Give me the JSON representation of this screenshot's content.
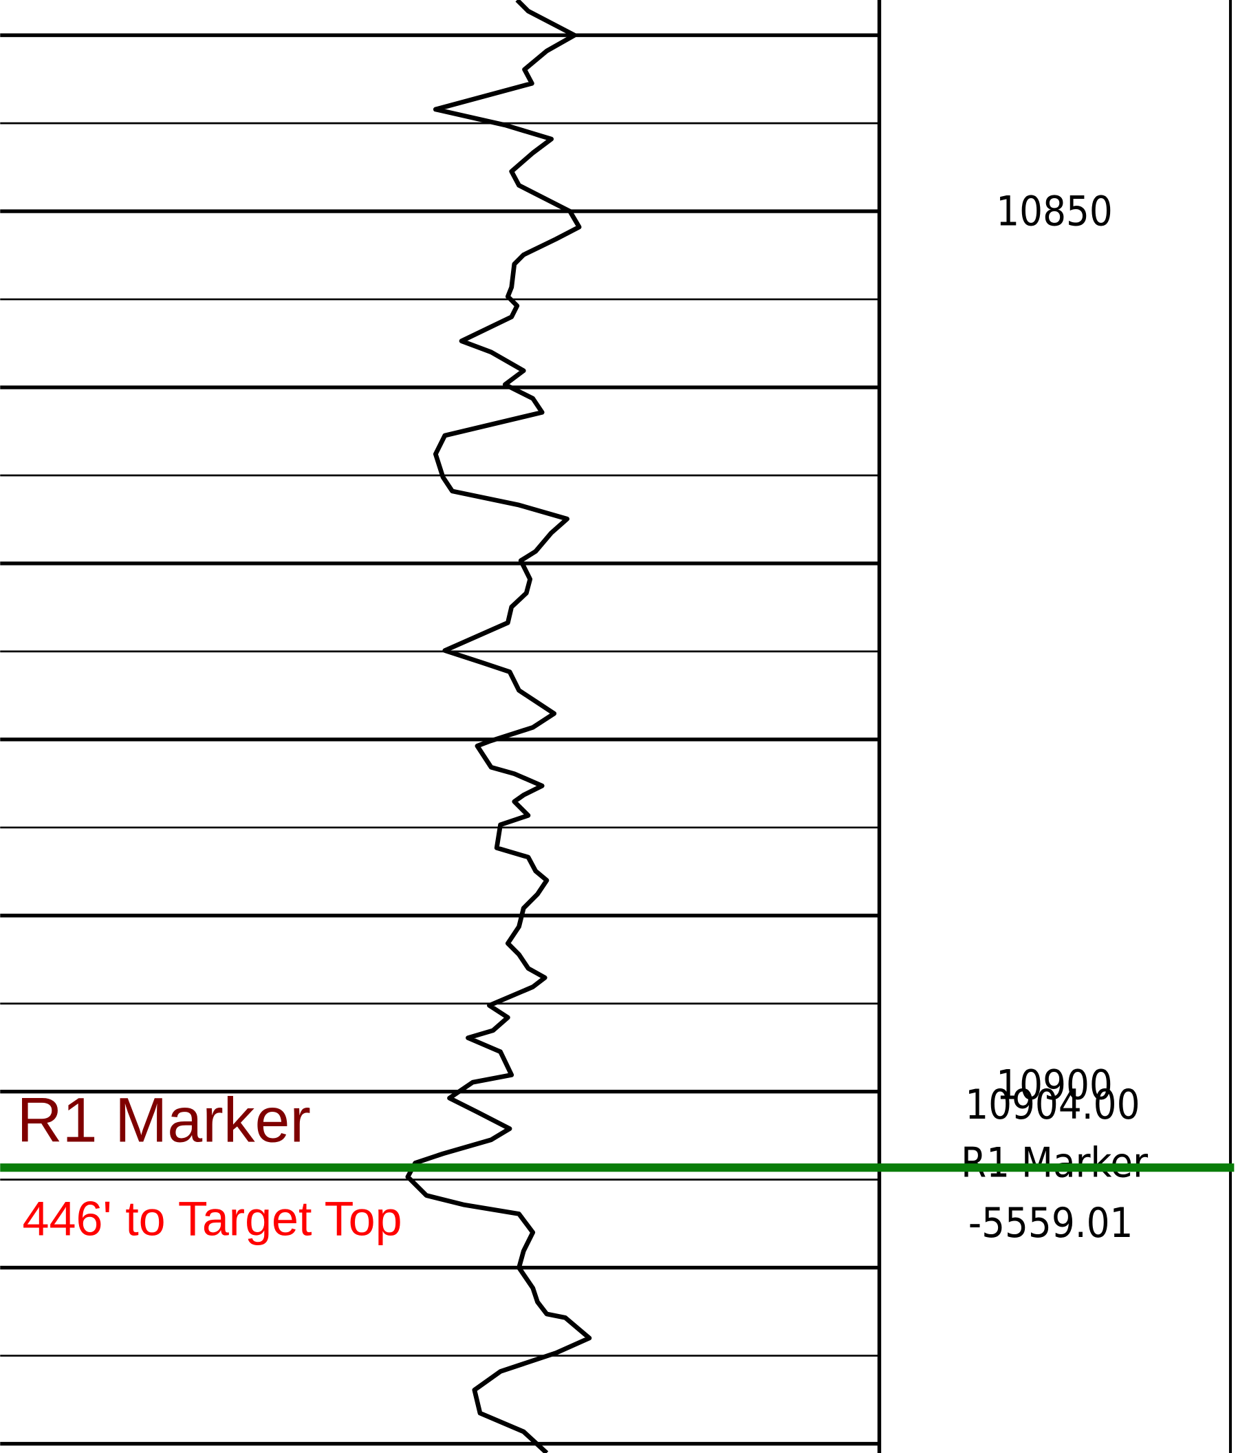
{
  "track_1": {
    "marker_name": "R1 Marker",
    "marker_note": "446' to Target Top"
  },
  "depth_track": {
    "depth_labels": [
      "10850",
      "10900"
    ],
    "marker": {
      "depth": "10904.00",
      "name": "R1 Marker",
      "subsea": "-5559.01"
    }
  }
}
